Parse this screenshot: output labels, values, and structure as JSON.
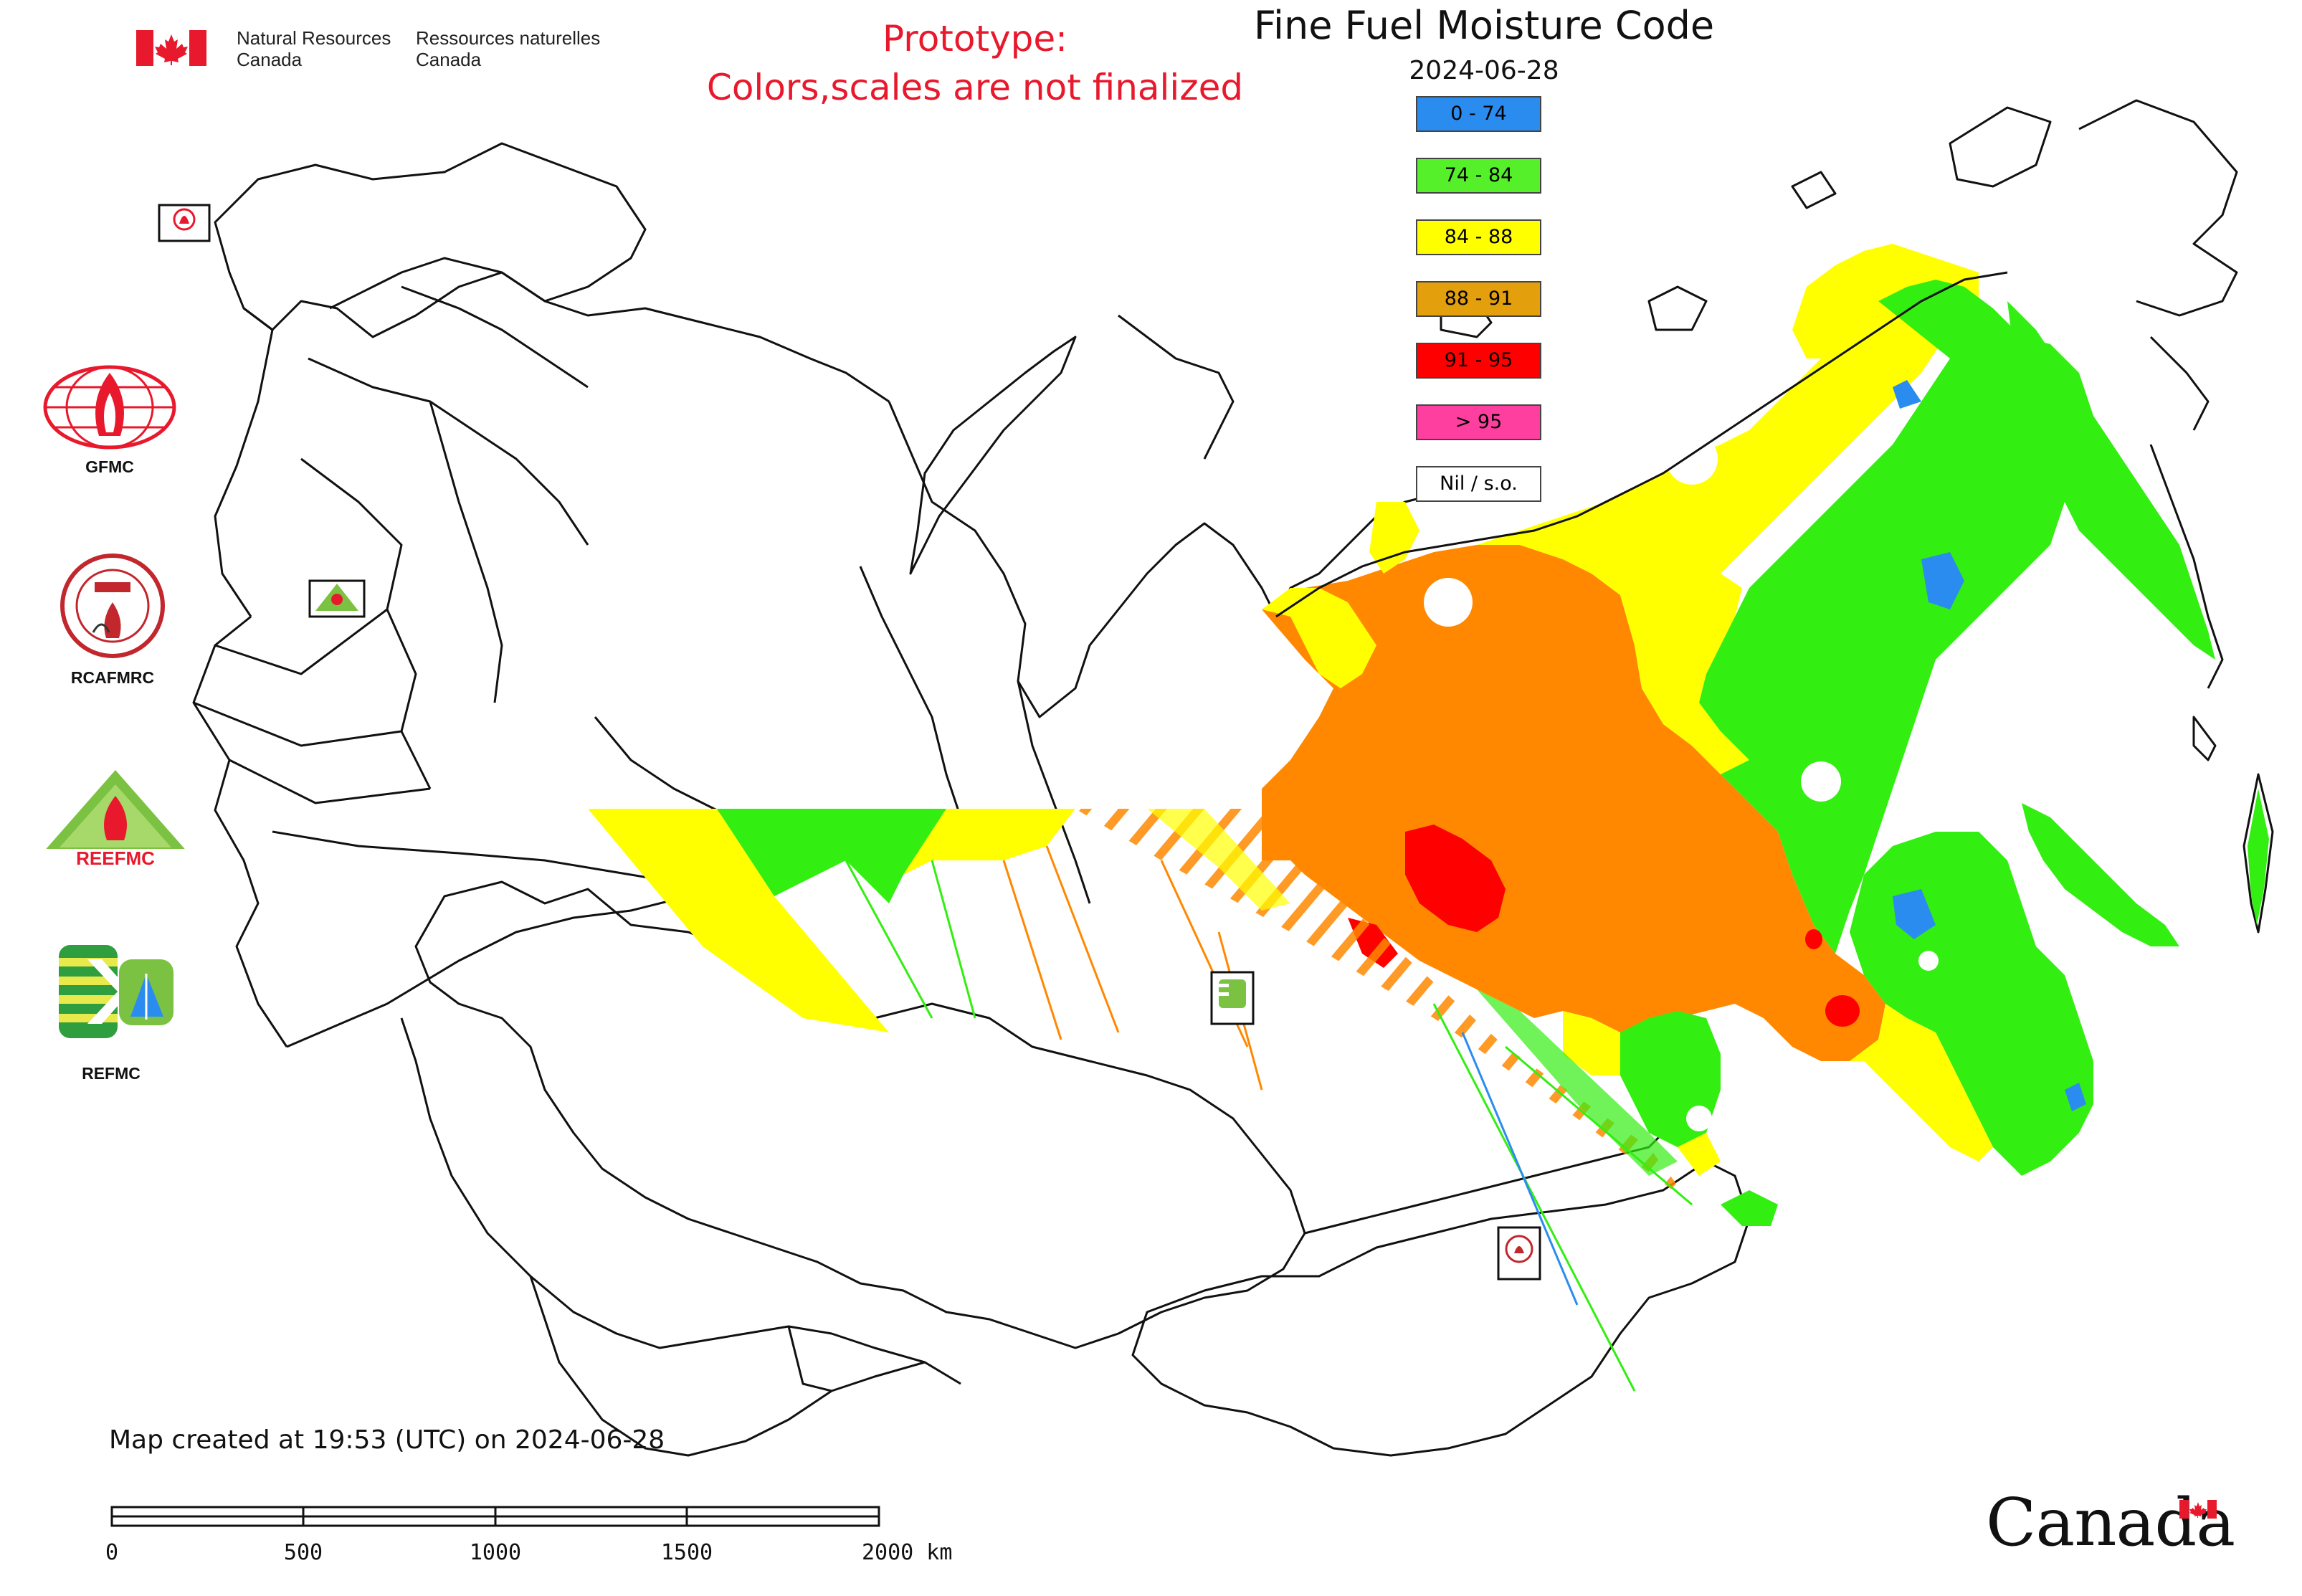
{
  "header": {
    "gov_en_line1": "Natural Resources",
    "gov_en_line2": "Canada",
    "gov_fr_line1": "Ressources naturelles",
    "gov_fr_line2": "Canada",
    "prototype_line1": "Prototype:",
    "prototype_line2": "Colors,scales are not finalized",
    "title": "Fine Fuel Moisture Code",
    "date": "2024-06-28"
  },
  "legend": {
    "items": [
      {
        "label": "0 - 74",
        "color": "#2b8cf0"
      },
      {
        "label": "74 - 84",
        "color": "#55f02a"
      },
      {
        "label": "84 - 88",
        "color": "#ffff00"
      },
      {
        "label": "88 - 91",
        "color": "#e3a00c"
      },
      {
        "label": "91 - 95",
        "color": "#ff0000"
      },
      {
        "label": "> 95",
        "color": "#ff3fa0"
      },
      {
        "label": "Nil / s.o.",
        "color": "#ffffff"
      }
    ]
  },
  "data_colors": {
    "orange_region": "#ff8800",
    "green_region": "#33ee11",
    "yellow_region": "#ffff00",
    "red_region": "#ff0000",
    "blue_region": "#2b8cf0"
  },
  "side_logos": [
    {
      "label": "GFMC",
      "icon": "gfmc-logo-icon"
    },
    {
      "label": "RCAFMRC",
      "icon": "rcafmrc-logo-icon"
    },
    {
      "label": "REEFMC",
      "icon": "reefmc-logo-icon"
    },
    {
      "label": "REFMC",
      "icon": "refmc-logo-icon"
    }
  ],
  "footer": {
    "created": "Map created at 19:53 (UTC) on 2024-06-28",
    "scale_labels": [
      "0",
      "500",
      "1000",
      "1500",
      "2000 km"
    ],
    "wordmark": "Canada"
  }
}
